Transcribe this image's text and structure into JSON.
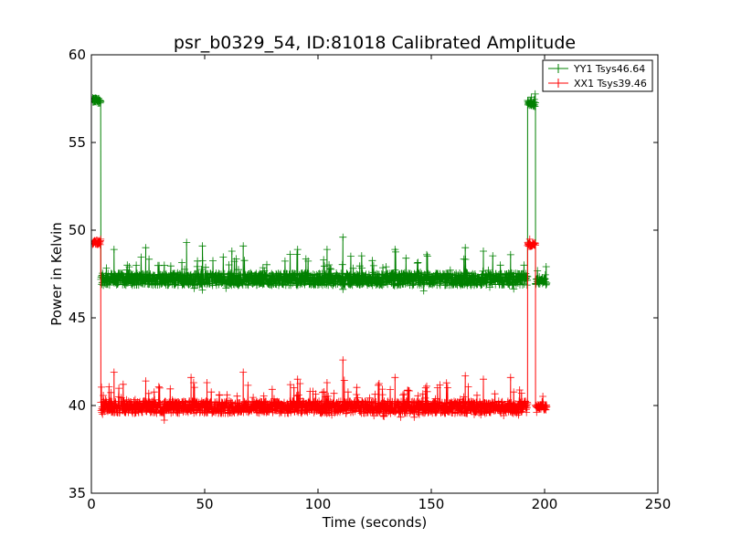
{
  "chart_data": {
    "type": "line",
    "title": "psr_b0329_54, ID:81018 Calibrated Amplitude",
    "xlabel": "Time (seconds)",
    "ylabel": "Power in Kelvin",
    "xlim": [
      0,
      250
    ],
    "ylim": [
      35,
      60
    ],
    "xticks": [
      0,
      50,
      100,
      150,
      200,
      250
    ],
    "yticks": [
      35,
      40,
      45,
      50,
      55,
      60
    ],
    "xtick_labels": [
      "0",
      "50",
      "100",
      "150",
      "200",
      "250"
    ],
    "ytick_labels": [
      "35",
      "40",
      "45",
      "50",
      "55",
      "60"
    ],
    "grid": false,
    "legend_position": "top-right",
    "marker": "+",
    "series": [
      {
        "name": "YY1 Tsys46.64",
        "color": "#008000",
        "segments": [
          {
            "x_start": 0.5,
            "x_end": 4.2,
            "level": 57.4,
            "noise": 0.15,
            "spikes": []
          },
          {
            "x_start": 4.2,
            "x_end": 192.5,
            "level": 47.2,
            "noise": 0.35,
            "spikes": [
              [
                10,
                48.9
              ],
              [
                24,
                49.0
              ],
              [
                42,
                49.3
              ],
              [
                49,
                49.1
              ],
              [
                62,
                48.8
              ],
              [
                67,
                49.1
              ],
              [
                91,
                48.9
              ],
              [
                104,
                48.9
              ],
              [
                111,
                49.6
              ],
              [
                134,
                48.9
              ],
              [
                148,
                48.6
              ],
              [
                165,
                49.0
              ],
              [
                173,
                48.8
              ],
              [
                185,
                48.6
              ]
            ]
          },
          {
            "x_start": 192.5,
            "x_end": 196.0,
            "level": 57.2,
            "noise": 0.15,
            "spikes": []
          },
          {
            "x_start": 196.0,
            "x_end": 201.0,
            "level": 47.1,
            "noise": 0.2,
            "spikes": []
          }
        ]
      },
      {
        "name": "XX1 Tsys39.46",
        "color": "#ff0000",
        "segments": [
          {
            "x_start": 0.5,
            "x_end": 4.2,
            "level": 49.3,
            "noise": 0.12,
            "spikes": []
          },
          {
            "x_start": 4.2,
            "x_end": 192.5,
            "level": 39.9,
            "noise": 0.35,
            "spikes": [
              [
                10,
                41.9
              ],
              [
                24,
                41.4
              ],
              [
                44,
                41.6
              ],
              [
                51,
                41.3
              ],
              [
                67,
                41.9
              ],
              [
                91,
                41.5
              ],
              [
                104,
                41.3
              ],
              [
                111,
                42.6
              ],
              [
                134,
                41.6
              ],
              [
                148,
                41.1
              ],
              [
                165,
                41.7
              ],
              [
                173,
                41.5
              ],
              [
                185,
                41.6
              ]
            ]
          },
          {
            "x_start": 192.5,
            "x_end": 196.0,
            "level": 49.2,
            "noise": 0.12,
            "spikes": []
          },
          {
            "x_start": 196.0,
            "x_end": 201.0,
            "level": 39.9,
            "noise": 0.15,
            "spikes": []
          }
        ]
      }
    ]
  }
}
